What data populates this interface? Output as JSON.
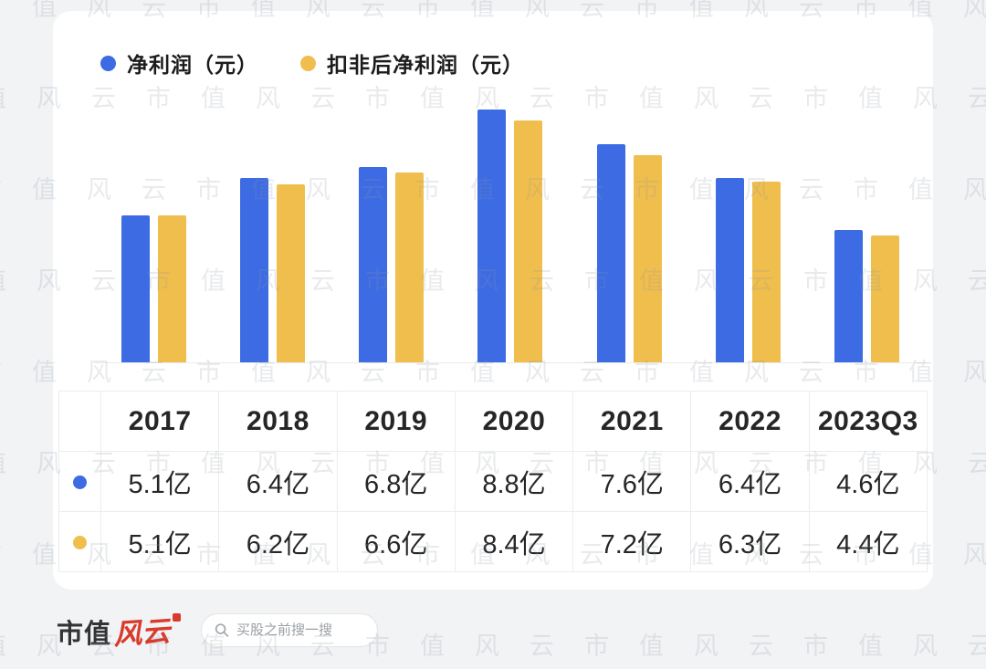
{
  "legend": {
    "series1_label": "净利润（元）",
    "series2_label": "扣非后净利润（元）"
  },
  "chart_data": {
    "type": "bar",
    "categories": [
      "2017",
      "2018",
      "2019",
      "2020",
      "2021",
      "2022",
      "2023Q3"
    ],
    "series": [
      {
        "name": "净利润（元）",
        "color": "#3C6BE4",
        "values": [
          5.1,
          6.4,
          6.8,
          8.8,
          7.6,
          6.4,
          4.6
        ],
        "unit": "亿"
      },
      {
        "name": "扣非后净利润（元）",
        "color": "#F0BE4D",
        "values": [
          5.1,
          6.2,
          6.6,
          8.4,
          7.2,
          6.3,
          4.4
        ],
        "unit": "亿"
      }
    ],
    "title": "",
    "xlabel": "",
    "ylabel": "",
    "ylim": [
      0,
      9.2
    ],
    "grid": false,
    "legend_position": "top-left"
  },
  "table": {
    "headers": [
      "2017",
      "2018",
      "2019",
      "2020",
      "2021",
      "2022",
      "2023Q3"
    ],
    "rows": [
      {
        "dot_color": "#3C6BE4",
        "cells": [
          "5.1亿",
          "6.4亿",
          "6.8亿",
          "8.8亿",
          "7.6亿",
          "6.4亿",
          "4.6亿"
        ]
      },
      {
        "dot_color": "#F0BE4D",
        "cells": [
          "5.1亿",
          "6.2亿",
          "6.6亿",
          "8.4亿",
          "7.2亿",
          "6.3亿",
          "4.4亿"
        ]
      }
    ]
  },
  "watermark": {
    "text": "市值风云"
  },
  "footer": {
    "logo_text_black": "市值",
    "logo_text_red": "风云",
    "search_placeholder": "买股之前搜一搜"
  },
  "colors": {
    "blue": "#3C6BE4",
    "yellow": "#F0BE4D",
    "background": "#f2f3f5",
    "card": "#ffffff",
    "axis_line": "#ebebeb",
    "table_border": "#ececec"
  }
}
